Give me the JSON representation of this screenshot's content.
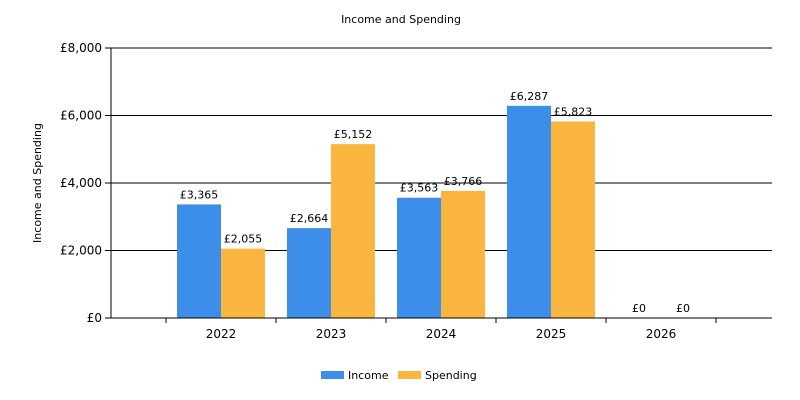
{
  "chart_data": {
    "type": "bar",
    "title": "Income and Spending",
    "xlabel": "",
    "ylabel": "Income and Spending",
    "categories": [
      "2022",
      "2023",
      "2024",
      "2025",
      "2026"
    ],
    "series": [
      {
        "name": "Income",
        "color": "#3d8ee8",
        "values": [
          3365,
          2664,
          3563,
          6287,
          0
        ],
        "labels": [
          "£3,365",
          "£2,664",
          "£3,563",
          "£6,287",
          "£0"
        ]
      },
      {
        "name": "Spending",
        "color": "#fab53e",
        "values": [
          2055,
          5152,
          3766,
          5823,
          0
        ],
        "labels": [
          "£2,055",
          "£5,152",
          "£3,766",
          "£5,823",
          "£0"
        ]
      }
    ],
    "ylim": [
      0,
      8000
    ],
    "yticks": [
      0,
      2000,
      4000,
      6000,
      8000
    ],
    "ytick_labels": [
      "£0",
      "£2,000",
      "£4,000",
      "£6,000",
      "£8,000"
    ],
    "grid": true,
    "legend_position": "bottom"
  }
}
